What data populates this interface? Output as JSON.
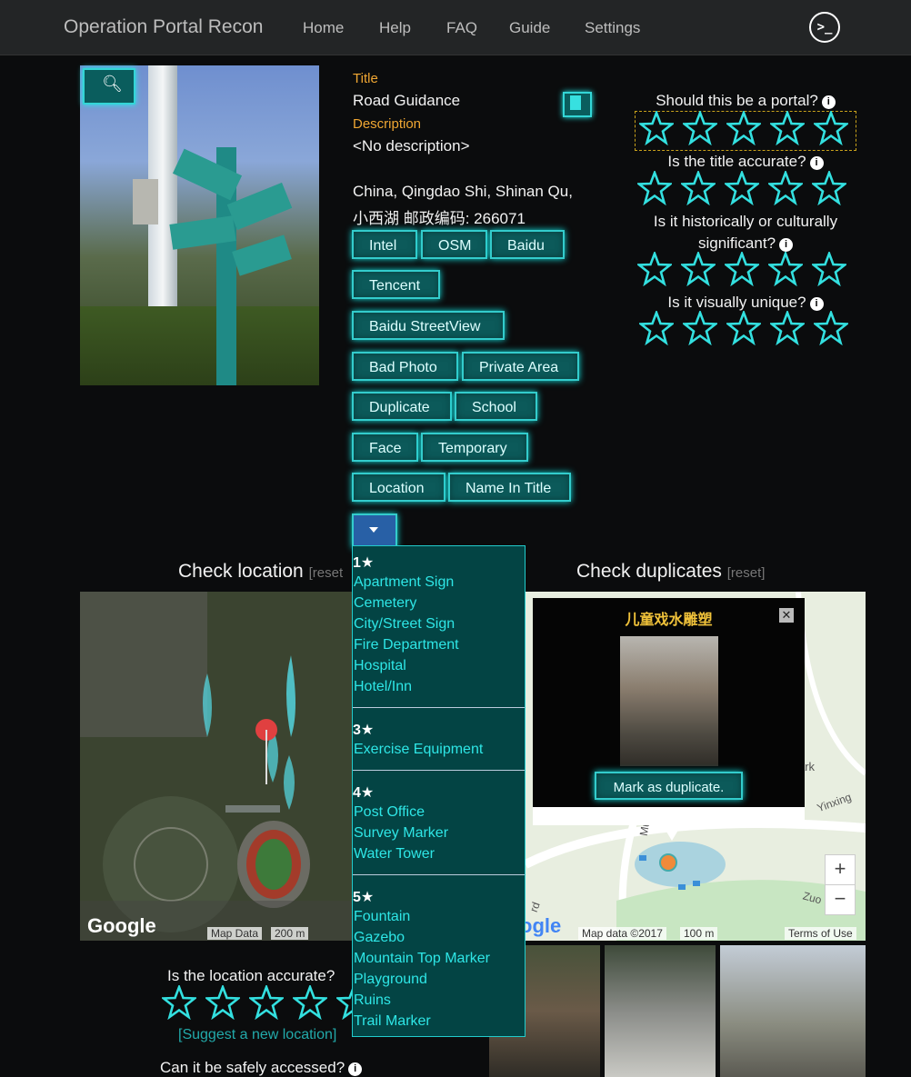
{
  "nav": {
    "brand": "Operation Portal Recon",
    "links": [
      "Home",
      "Help",
      "FAQ",
      "Guide",
      "Settings"
    ],
    "prompt_icon": ">_"
  },
  "candidate": {
    "title_label": "Title",
    "title": "Road Guidance",
    "description_label": "Description",
    "description": "<No description>",
    "address_line1": "China, Qingdao Shi, Shinan Qu,",
    "address_line2": "小西湖 邮政编码: 266071"
  },
  "buttons": {
    "intel": "Intel",
    "osm": "OSM",
    "baidu": "Baidu",
    "tencent": "Tencent",
    "baidu_streetview": "Baidu StreetView",
    "bad_photo": "Bad Photo",
    "private_area": "Private Area",
    "duplicate": "Duplicate",
    "school": "School",
    "face": "Face",
    "temporary": "Temporary",
    "location": "Location",
    "name_in_title": "Name In Title"
  },
  "questions": {
    "portal": "Should this be a portal?",
    "title_accurate": "Is the title accurate?",
    "historic_l1": "Is it historically or culturally",
    "historic_l2": "significant?",
    "unique": "Is it visually unique?",
    "location_accurate": "Is the location accurate?",
    "safe_access": "Can it be safely accessed?"
  },
  "sections": {
    "check_location": "Check location",
    "check_duplicates": "Check duplicates",
    "reset_location": "[reset",
    "reset_duplicates": "[reset]",
    "suggest_location": "[Suggest a new location]"
  },
  "dropdown": {
    "groups": [
      {
        "head": "1★",
        "items": [
          "Apartment Sign",
          "Cemetery",
          "City/Street Sign",
          "Fire Department",
          "Hospital",
          "Hotel/Inn"
        ]
      },
      {
        "head": "3★",
        "items": [
          "Exercise Equipment"
        ]
      },
      {
        "head": "4★",
        "items": [
          "Post Office",
          "Survey Marker",
          "Water Tower"
        ]
      },
      {
        "head": "5★",
        "items": [
          "Fountain",
          "Gazebo",
          "Mountain Top Marker",
          "Playground",
          "Ruins",
          "Trail Marker"
        ]
      }
    ]
  },
  "dup_popup": {
    "title": "儿童戏水雕塑",
    "close": "✕",
    "action": "Mark as duplicate."
  },
  "maps": {
    "loc_logo": "Google",
    "loc_attrib": "Map Data",
    "loc_scale": "200 m",
    "dup_logo": "ogle",
    "dup_attrib": "Map data ©2017",
    "dup_scale": "100 m",
    "terms": "Terms of Use",
    "zoom_in": "+",
    "zoom_out": "−",
    "road_labels": [
      "ark",
      "Yinxing",
      "Mup",
      "Zuo",
      "rd"
    ]
  },
  "colors": {
    "accent": "#33d6d6",
    "label": "#f0a733",
    "button_bg": "#0c5a5a",
    "star": "#33e0e0"
  }
}
